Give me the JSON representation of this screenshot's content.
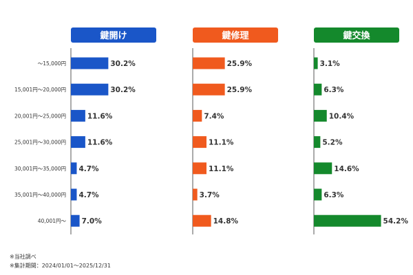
{
  "chart_data": {
    "type": "bar",
    "orientation": "horizontal",
    "categories": [
      "〜15,000円",
      "15,001円〜20,000円",
      "20,001円〜25,000円",
      "25,001円〜30,000円",
      "30,001円〜35,000円",
      "35,001円〜40,000円",
      "40,001円〜"
    ],
    "value_suffix": "%",
    "series": [
      {
        "name": "鍵開け",
        "color": "#1a56c8",
        "values": [
          30.2,
          30.2,
          11.6,
          11.6,
          4.7,
          4.7,
          7.0
        ]
      },
      {
        "name": "鍵修理",
        "color": "#f05a1e",
        "values": [
          25.9,
          25.9,
          7.4,
          11.1,
          11.1,
          3.7,
          14.8
        ]
      },
      {
        "name": "鍵交換",
        "color": "#14892c",
        "values": [
          3.1,
          6.3,
          10.4,
          5.2,
          14.6,
          6.3,
          54.2
        ]
      }
    ],
    "xlim": [
      0,
      100
    ],
    "grid": false,
    "legend": "none"
  },
  "notes": [
    "※当社調べ",
    "※集計期間：2024/01/01〜2025/12/31"
  ]
}
